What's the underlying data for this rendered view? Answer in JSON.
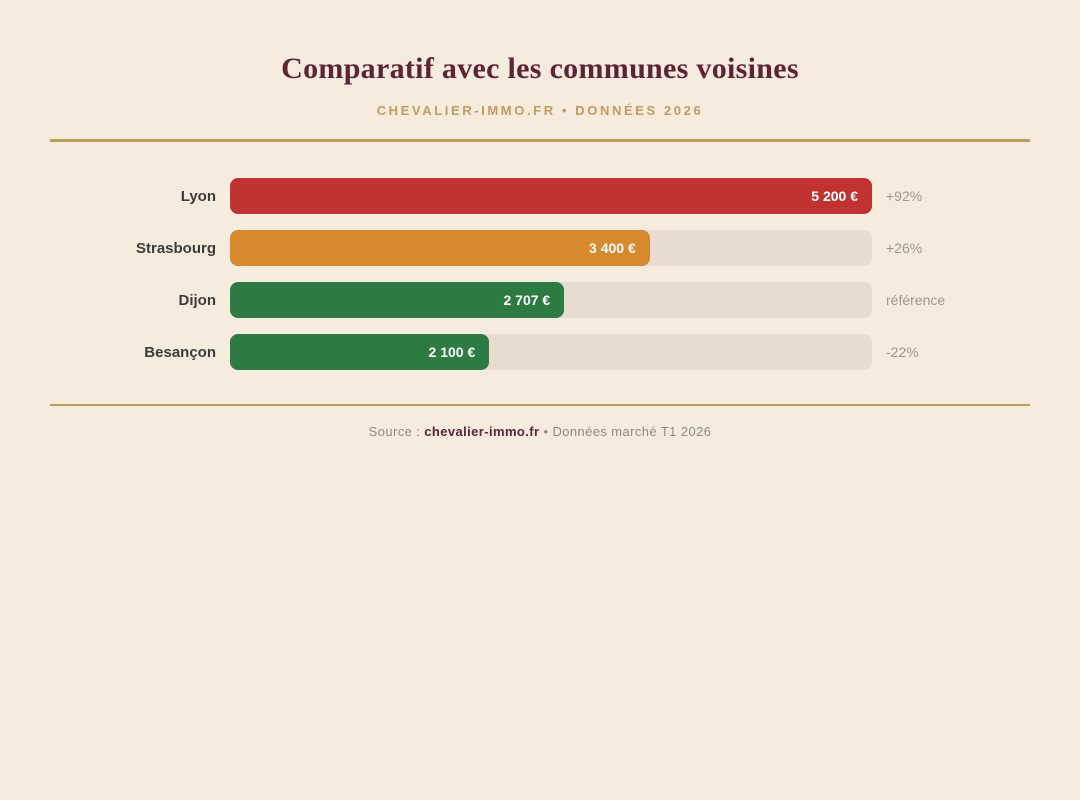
{
  "page": {
    "title": "Comparatif avec les communes voisines",
    "subtitle": "CHEVALIER-IMMO.FR • DONNÉES 2026"
  },
  "footer": {
    "source_prefix": "Source : ",
    "source_link": "chevalier-immo.fr",
    "source_suffix": " • Données marché T1 2026"
  },
  "colors": {
    "background": "#F5ECDE",
    "title_text": "#5E2337",
    "accent_gold": "#BE9A5D",
    "bar_red": "#C03330",
    "bar_orange": "#D6892D",
    "bar_green": "#2D7A43",
    "bar_track": "#E7DCCF",
    "label_text": "#3C3C3A",
    "annotation_text": "#A09887"
  },
  "chart_data": {
    "type": "bar",
    "orientation": "horizontal",
    "title": "Comparatif avec les communes voisines",
    "subtitle": "CHEVALIER-IMMO.FR • DONNÉES 2026",
    "xlim": [
      0,
      5200
    ],
    "max_value": 5200,
    "grid": false,
    "legend": false,
    "categories": [
      "Lyon",
      "Strasbourg",
      "Dijon",
      "Besançon"
    ],
    "values": [
      5200,
      3400,
      2707,
      2100
    ],
    "rows": [
      {
        "label": "Lyon",
        "value": 5200,
        "value_label": "5 200 €",
        "annotation": "+92%",
        "color": "#C03330"
      },
      {
        "label": "Strasbourg",
        "value": 3400,
        "value_label": "3 400 €",
        "annotation": "+26%",
        "color": "#D6892D"
      },
      {
        "label": "Dijon",
        "value": 2707,
        "value_label": "2 707 €",
        "annotation": "référence",
        "color": "#2D7A43"
      },
      {
        "label": "Besançon",
        "value": 2100,
        "value_label": "2 100 €",
        "annotation": "-22%",
        "color": "#2D7A43"
      }
    ]
  }
}
